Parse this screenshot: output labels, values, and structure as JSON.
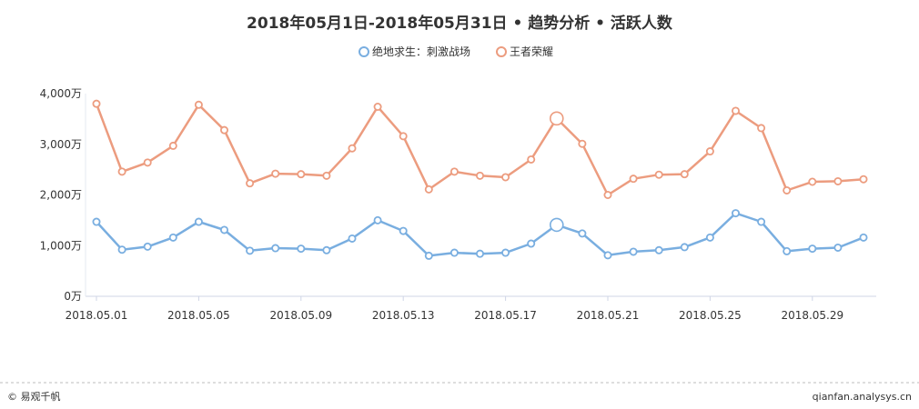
{
  "chart_data": {
    "type": "line",
    "title": "2018年05月1日-2018年05月31日 • 趋势分析 • 活跃人数",
    "xlabel": "",
    "ylabel": "",
    "y_unit_suffix": "万",
    "ylim": [
      0,
      4000
    ],
    "y_ticks": [
      "0万",
      "1,000万",
      "2,000万",
      "3,000万",
      "4,000万"
    ],
    "y_tick_values": [
      0,
      1000,
      2000,
      3000,
      4000
    ],
    "x": [
      "2018.05.01",
      "2018.05.02",
      "2018.05.03",
      "2018.05.04",
      "2018.05.05",
      "2018.05.06",
      "2018.05.07",
      "2018.05.08",
      "2018.05.09",
      "2018.05.10",
      "2018.05.11",
      "2018.05.12",
      "2018.05.13",
      "2018.05.14",
      "2018.05.15",
      "2018.05.16",
      "2018.05.17",
      "2018.05.18",
      "2018.05.19",
      "2018.05.20",
      "2018.05.21",
      "2018.05.22",
      "2018.05.23",
      "2018.05.24",
      "2018.05.25",
      "2018.05.26",
      "2018.05.27",
      "2018.05.28",
      "2018.05.29",
      "2018.05.30",
      "2018.05.31"
    ],
    "x_tick_labels": [
      "2018.05.01",
      "2018.05.05",
      "2018.05.09",
      "2018.05.13",
      "2018.05.17",
      "2018.05.21",
      "2018.05.25",
      "2018.05.29"
    ],
    "highlight_index": 18,
    "legend_position": "top-center",
    "grid": false,
    "series": [
      {
        "name": "绝地求生：刺激战场",
        "color": "#79aee0",
        "values": [
          1470,
          920,
          980,
          1160,
          1470,
          1310,
          900,
          950,
          940,
          910,
          1140,
          1500,
          1290,
          800,
          860,
          840,
          860,
          1040,
          1410,
          1240,
          810,
          880,
          910,
          970,
          1160,
          1640,
          1470,
          890,
          940,
          960,
          1160
        ]
      },
      {
        "name": "王者荣耀",
        "color": "#ec9c7f",
        "values": [
          3800,
          2460,
          2640,
          2970,
          3780,
          3280,
          2230,
          2420,
          2410,
          2380,
          2920,
          3740,
          3160,
          2110,
          2460,
          2380,
          2350,
          2700,
          3510,
          3010,
          2000,
          2320,
          2400,
          2410,
          2860,
          3660,
          3320,
          2090,
          2260,
          2270,
          2310
        ]
      }
    ]
  },
  "footer": {
    "left_text": "© 易观千帆",
    "right_text": "qianfan.analysys.cn"
  }
}
